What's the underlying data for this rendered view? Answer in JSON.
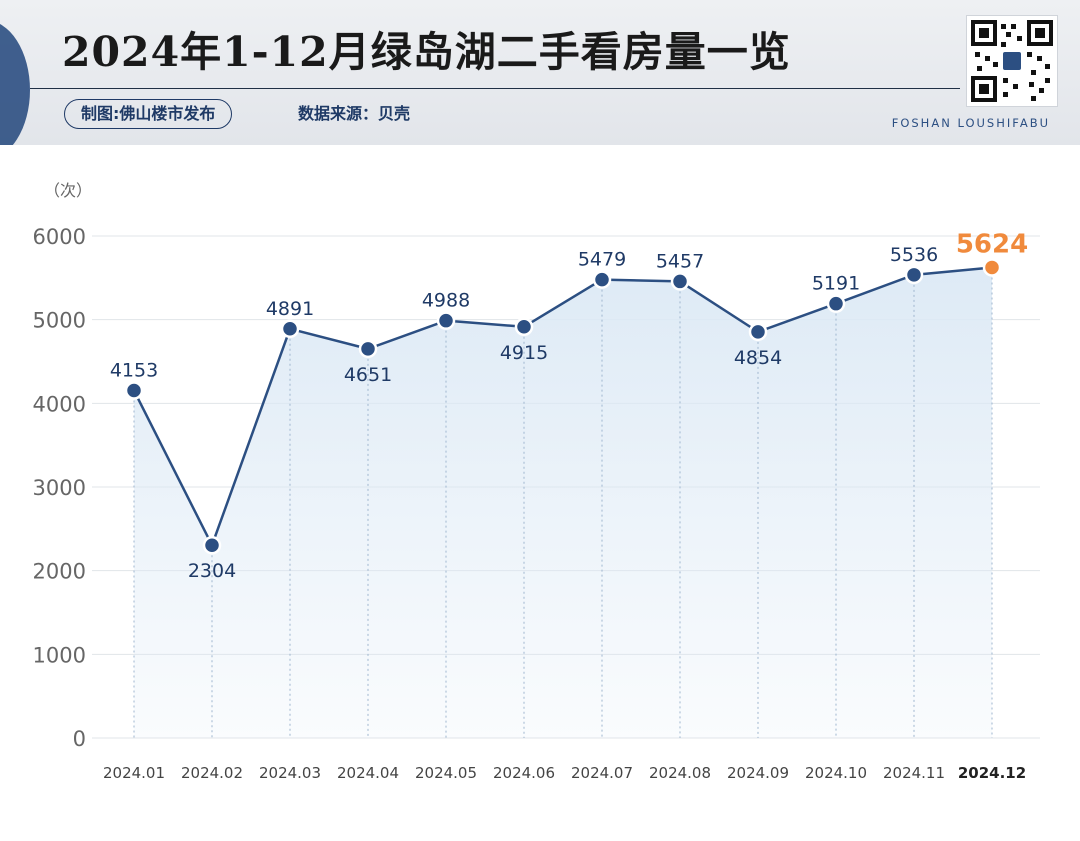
{
  "header": {
    "title": "2024年1-12月绿岛湖二手看房量一览",
    "credit": "制图:佛山楼市发布",
    "source": "数据来源：贝壳",
    "brand": "FOSHAN LOUSHIFABU"
  },
  "colors": {
    "line": "#2c4f82",
    "highlight": "#f08a3c",
    "area": "#dce9f5",
    "grid": "#e1e4e8",
    "label": "#1f3a66",
    "axis_text": "#666666"
  },
  "chart_data": {
    "type": "line",
    "unit_label": "（次）",
    "categories": [
      "2024.01",
      "2024.02",
      "2024.03",
      "2024.04",
      "2024.05",
      "2024.06",
      "2024.07",
      "2024.08",
      "2024.09",
      "2024.10",
      "2024.11",
      "2024.12"
    ],
    "values": [
      4153,
      2304,
      4891,
      4651,
      4988,
      4915,
      5479,
      5457,
      4854,
      5191,
      5536,
      5624
    ],
    "data_labels": [
      "4153",
      "2304",
      "4891",
      "4651",
      "4988",
      "4915",
      "5479",
      "5457",
      "4854",
      "5191",
      "5536",
      "5624"
    ],
    "label_position": [
      "above",
      "below",
      "above",
      "below",
      "above",
      "below",
      "above",
      "above",
      "below",
      "above",
      "above",
      "above"
    ],
    "highlight_index": 11,
    "ylim": [
      0,
      6000
    ],
    "yticks": [
      0,
      1000,
      2000,
      3000,
      4000,
      5000,
      6000
    ],
    "ytick_labels": [
      "0",
      "1000",
      "2000",
      "3000",
      "4000",
      "5000",
      "6000"
    ],
    "grid": true,
    "legend": "none"
  }
}
